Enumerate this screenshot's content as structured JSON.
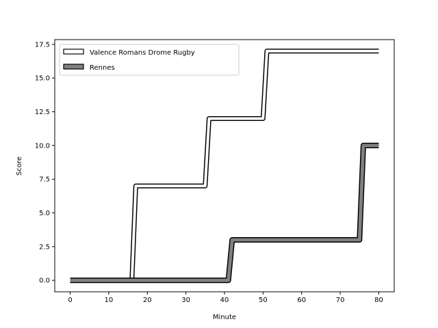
{
  "chart_data": {
    "type": "line",
    "title": "",
    "xlabel": "Minute",
    "ylabel": "Score",
    "xlim": [
      -4,
      84
    ],
    "ylim": [
      -0.85,
      17.85
    ],
    "xticks": [
      0,
      10,
      20,
      30,
      40,
      50,
      60,
      70,
      80
    ],
    "xtick_labels": [
      "0",
      "10",
      "20",
      "30",
      "40",
      "50",
      "60",
      "70",
      "80"
    ],
    "yticks": [
      0,
      2.5,
      5,
      7.5,
      10,
      12.5,
      15,
      17.5
    ],
    "ytick_labels": [
      "0.0",
      "2.5",
      "5.0",
      "7.5",
      "10.0",
      "12.5",
      "15.0",
      "17.5"
    ],
    "grid": false,
    "legend_position": "top-left",
    "series": [
      {
        "name": "Valence Romans Drome Rugby",
        "color": "#ffffff",
        "edge_color": "#000000",
        "points": [
          [
            0,
            0
          ],
          [
            16,
            0
          ],
          [
            17,
            7
          ],
          [
            35,
            7
          ],
          [
            36,
            12
          ],
          [
            50,
            12
          ],
          [
            51,
            17
          ],
          [
            80,
            17
          ]
        ]
      },
      {
        "name": "Rennes",
        "color": "#808080",
        "edge_color": "#000000",
        "points": [
          [
            0,
            0
          ],
          [
            41,
            0
          ],
          [
            42,
            3
          ],
          [
            75,
            3
          ],
          [
            76,
            10
          ],
          [
            80,
            10
          ]
        ]
      }
    ]
  }
}
